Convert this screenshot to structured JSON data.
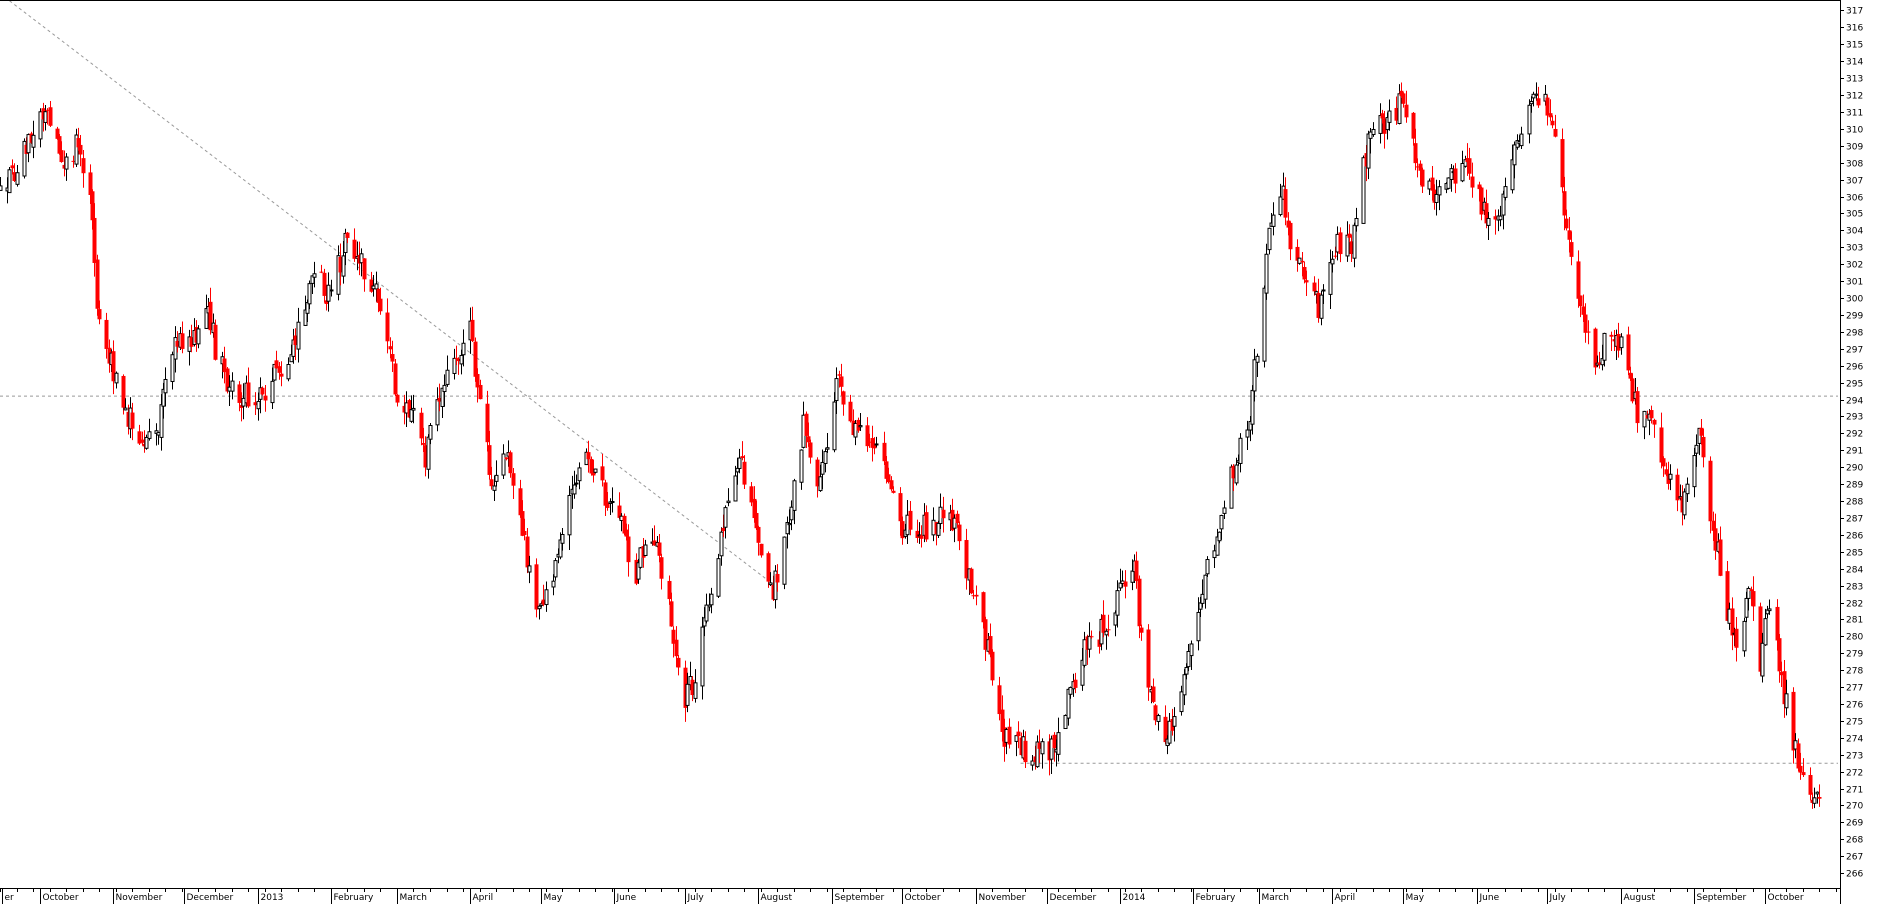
{
  "chart_data": {
    "type": "candlestick",
    "title": "",
    "xlabel": "",
    "ylabel": "",
    "ylim": [
      265.3,
      317.5
    ],
    "y_ticks": [
      266,
      267,
      268,
      269,
      270,
      271,
      272,
      273,
      274,
      275,
      276,
      277,
      278,
      279,
      280,
      281,
      282,
      283,
      284,
      285,
      286,
      287,
      288,
      289,
      290,
      291,
      292,
      293,
      294,
      295,
      296,
      297,
      298,
      299,
      300,
      301,
      302,
      303,
      304,
      305,
      306,
      307,
      308,
      309,
      310,
      311,
      312,
      313,
      314,
      315,
      316,
      317
    ],
    "x_range": [
      "2012-09-14",
      "2014-11-01"
    ],
    "month_labels": [
      {
        "date": "2012-09-15",
        "label": "er"
      },
      {
        "date": "2012-10-01",
        "label": "October"
      },
      {
        "date": "2012-11-01",
        "label": "November"
      },
      {
        "date": "2012-12-01",
        "label": "December"
      },
      {
        "date": "2013-01-01",
        "label": "2013"
      },
      {
        "date": "2013-02-01",
        "label": "February"
      },
      {
        "date": "2013-03-01",
        "label": "March"
      },
      {
        "date": "2013-04-01",
        "label": "April"
      },
      {
        "date": "2013-05-01",
        "label": "May"
      },
      {
        "date": "2013-06-01",
        "label": "June"
      },
      {
        "date": "2013-07-01",
        "label": "July"
      },
      {
        "date": "2013-08-01",
        "label": "August"
      },
      {
        "date": "2013-09-01",
        "label": "September"
      },
      {
        "date": "2013-10-01",
        "label": "October"
      },
      {
        "date": "2013-11-01",
        "label": "November"
      },
      {
        "date": "2013-12-01",
        "label": "December"
      },
      {
        "date": "2014-01-01",
        "label": "2014"
      },
      {
        "date": "2014-02-01",
        "label": "February"
      },
      {
        "date": "2014-03-01",
        "label": "March"
      },
      {
        "date": "2014-04-01",
        "label": "April"
      },
      {
        "date": "2014-05-01",
        "label": "May"
      },
      {
        "date": "2014-06-01",
        "label": "June"
      },
      {
        "date": "2014-07-01",
        "label": "July"
      },
      {
        "date": "2014-08-01",
        "label": "August"
      },
      {
        "date": "2014-09-01",
        "label": "September"
      },
      {
        "date": "2014-10-01",
        "label": "October"
      }
    ],
    "anchors": [
      [
        "2012-09-14",
        306.5
      ],
      [
        "2012-09-24",
        308.5
      ],
      [
        "2012-10-03",
        311.5
      ],
      [
        "2012-10-10",
        308
      ],
      [
        "2012-10-17",
        309
      ],
      [
        "2012-10-22",
        306
      ],
      [
        "2012-10-25",
        300
      ],
      [
        "2012-10-31",
        296
      ],
      [
        "2012-11-07",
        293
      ],
      [
        "2012-11-14",
        291.2
      ],
      [
        "2012-11-20",
        292.5
      ],
      [
        "2012-11-27",
        297.5
      ],
      [
        "2012-12-04",
        297
      ],
      [
        "2012-12-11",
        299.5
      ],
      [
        "2012-12-14",
        297
      ],
      [
        "2012-12-21",
        294.5
      ],
      [
        "2012-12-31",
        294
      ],
      [
        "2013-01-09",
        295.5
      ],
      [
        "2013-01-16",
        297
      ],
      [
        "2013-01-25",
        301.5
      ],
      [
        "2013-02-01",
        300
      ],
      [
        "2013-02-08",
        304
      ],
      [
        "2013-02-15",
        301.5
      ],
      [
        "2013-02-22",
        300
      ],
      [
        "2013-03-01",
        294
      ],
      [
        "2013-03-08",
        293.5
      ],
      [
        "2013-03-13",
        290.5
      ],
      [
        "2013-03-19",
        294.5
      ],
      [
        "2013-03-26",
        296.5
      ],
      [
        "2013-04-01",
        298
      ],
      [
        "2013-04-05",
        294
      ],
      [
        "2013-04-10",
        289
      ],
      [
        "2013-04-17",
        290.5
      ],
      [
        "2013-04-22",
        287.5
      ],
      [
        "2013-04-29",
        281
      ],
      [
        "2013-05-06",
        283
      ],
      [
        "2013-05-14",
        289
      ],
      [
        "2013-05-20",
        291
      ],
      [
        "2013-05-27",
        288.5
      ],
      [
        "2013-06-03",
        287
      ],
      [
        "2013-06-10",
        283.5
      ],
      [
        "2013-06-14",
        286
      ],
      [
        "2013-06-20",
        285
      ],
      [
        "2013-06-26",
        280
      ],
      [
        "2013-07-01",
        276.5
      ],
      [
        "2013-07-05",
        277.5
      ],
      [
        "2013-07-11",
        282
      ],
      [
        "2013-07-17",
        286.5
      ],
      [
        "2013-07-24",
        290.5
      ],
      [
        "2013-07-31",
        286
      ],
      [
        "2013-08-07",
        282.5
      ],
      [
        "2013-08-13",
        286
      ],
      [
        "2013-08-20",
        292.5
      ],
      [
        "2013-08-27",
        289
      ],
      [
        "2013-09-03",
        295.5
      ],
      [
        "2013-09-09",
        292.5
      ],
      [
        "2013-09-16",
        292
      ],
      [
        "2013-09-23",
        290
      ],
      [
        "2013-09-30",
        286.5
      ],
      [
        "2013-10-07",
        286.5
      ],
      [
        "2013-10-14",
        286.5
      ],
      [
        "2013-10-21",
        287.5
      ],
      [
        "2013-10-28",
        284
      ],
      [
        "2013-11-04",
        280.5
      ],
      [
        "2013-11-08",
        278
      ],
      [
        "2013-11-13",
        274
      ],
      [
        "2013-11-20",
        273.5
      ],
      [
        "2013-11-27",
        273
      ],
      [
        "2013-12-04",
        273.5
      ],
      [
        "2013-12-11",
        276.5
      ],
      [
        "2013-12-18",
        279.5
      ],
      [
        "2013-12-26",
        280.5
      ],
      [
        "2014-01-02",
        283
      ],
      [
        "2014-01-07",
        284
      ],
      [
        "2014-01-10",
        279.5
      ],
      [
        "2014-01-15",
        276.5
      ],
      [
        "2014-01-20",
        273
      ],
      [
        "2014-01-27",
        277.5
      ],
      [
        "2014-02-03",
        281.5
      ],
      [
        "2014-02-07",
        284
      ],
      [
        "2014-02-13",
        287.5
      ],
      [
        "2014-02-19",
        290.5
      ],
      [
        "2014-02-25",
        293
      ],
      [
        "2014-02-27",
        296
      ],
      [
        "2014-03-03",
        301
      ],
      [
        "2014-03-06",
        304.5
      ],
      [
        "2014-03-11",
        306.5
      ],
      [
        "2014-03-14",
        303
      ],
      [
        "2014-03-19",
        301.5
      ],
      [
        "2014-03-26",
        299.5
      ],
      [
        "2014-04-02",
        303
      ],
      [
        "2014-04-09",
        303
      ],
      [
        "2014-04-16",
        309.5
      ],
      [
        "2014-04-23",
        310.5
      ],
      [
        "2014-04-30",
        311.5
      ],
      [
        "2014-05-07",
        307.5
      ],
      [
        "2014-05-14",
        306
      ],
      [
        "2014-05-21",
        307
      ],
      [
        "2014-05-28",
        307.5
      ],
      [
        "2014-06-04",
        305
      ],
      [
        "2014-06-11",
        305.5
      ],
      [
        "2014-06-18",
        309.5
      ],
      [
        "2014-06-25",
        312.5
      ],
      [
        "2014-07-02",
        311
      ],
      [
        "2014-07-07",
        306
      ],
      [
        "2014-07-14",
        300
      ],
      [
        "2014-07-21",
        296
      ],
      [
        "2014-07-28",
        298.5
      ],
      [
        "2014-08-04",
        296
      ],
      [
        "2014-08-08",
        293
      ],
      [
        "2014-08-14",
        292.5
      ],
      [
        "2014-08-21",
        289
      ],
      [
        "2014-08-27",
        288
      ],
      [
        "2014-09-03",
        292.5
      ],
      [
        "2014-09-09",
        286.5
      ],
      [
        "2014-09-15",
        281.5
      ],
      [
        "2014-09-20",
        279.5
      ],
      [
        "2014-09-24",
        283.5
      ],
      [
        "2014-09-29",
        278.5
      ],
      [
        "2014-10-03",
        282
      ],
      [
        "2014-10-09",
        276.5
      ],
      [
        "2014-10-15",
        272.5
      ],
      [
        "2014-10-20",
        270.5
      ],
      [
        "2014-10-25",
        270
      ]
    ],
    "reference_lines": [
      {
        "type": "horizontal",
        "value": 294.2,
        "from": "2012-09-14",
        "to": "2014-11-01",
        "style": "dotted"
      },
      {
        "type": "horizontal",
        "value": 272.5,
        "from": "2013-11-20",
        "to": "2014-11-01",
        "style": "dotted"
      },
      {
        "type": "trend",
        "from_date": "2012-09-14",
        "from_value": 318,
        "to_date": "2013-08-08",
        "to_value": 283,
        "style": "dotted"
      }
    ],
    "legend": "none",
    "grid": false,
    "colors": {
      "up": "#000000",
      "down": "#ff0000",
      "axis": "#000000",
      "reference": "#999999",
      "background": "#ffffff"
    }
  }
}
